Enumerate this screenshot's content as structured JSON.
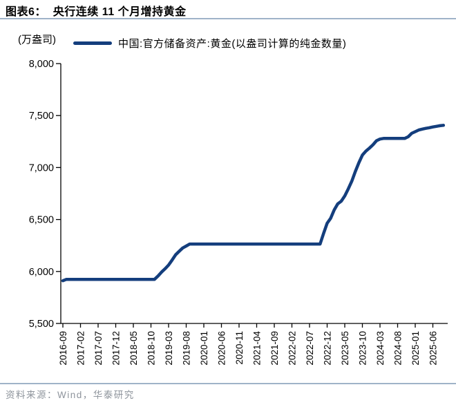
{
  "header": {
    "title": "图表6：  央行连续 11 个月增持黄金"
  },
  "chart": {
    "unit_label": "(万盎司)",
    "legend": {
      "label": "中国:官方储备资产:黄金(以盎司计算的纯金数量)"
    }
  },
  "footer": {
    "source": "资料来源：Wind，华泰研究"
  },
  "colors": {
    "line": "#143e7d",
    "axis": "#000000",
    "divider": "#9fb3c8",
    "source_text": "#8e949c"
  },
  "chart_data": {
    "type": "line",
    "title": "央行连续 11 个月增持黄金",
    "unit": "万盎司",
    "grid": false,
    "legend_position": "top",
    "ylim": [
      5500,
      8000
    ],
    "y_tick_values": [
      5500,
      6000,
      6500,
      7000,
      7500,
      8000
    ],
    "y_tick_labels": [
      "5,500",
      "6,000",
      "6,500",
      "7,000",
      "7,500",
      "8,000"
    ],
    "x_tick_labels": [
      "2016-09",
      "2017-02",
      "2017-07",
      "2017-12",
      "2018-05",
      "2018-10",
      "2019-03",
      "2019-08",
      "2020-01",
      "2020-06",
      "2020-11",
      "2021-04",
      "2021-09",
      "2022-02",
      "2022-07",
      "2022-12",
      "2023-05",
      "2023-10",
      "2024-03",
      "2024-08",
      "2025-01",
      "2025-06"
    ],
    "x_tick_every_n_months": 5,
    "series": [
      {
        "name": "中国:官方储备资产:黄金(以盎司计算的纯金数量)",
        "color": "#143e7d",
        "x_start": "2016-09",
        "x_freq": "monthly",
        "values": [
          5911,
          5924,
          5924,
          5924,
          5924,
          5924,
          5924,
          5924,
          5924,
          5924,
          5924,
          5924,
          5924,
          5924,
          5924,
          5924,
          5924,
          5924,
          5924,
          5924,
          5924,
          5924,
          5924,
          5924,
          5924,
          5924,
          5924,
          5956,
          5994,
          6026,
          6062,
          6110,
          6161,
          6194,
          6226,
          6245,
          6264,
          6264,
          6264,
          6264,
          6264,
          6264,
          6264,
          6264,
          6264,
          6264,
          6264,
          6264,
          6264,
          6264,
          6264,
          6264,
          6264,
          6264,
          6264,
          6264,
          6264,
          6264,
          6264,
          6264,
          6264,
          6264,
          6264,
          6264,
          6264,
          6264,
          6264,
          6264,
          6264,
          6264,
          6264,
          6264,
          6264,
          6264,
          6367,
          6464,
          6512,
          6592,
          6650,
          6676,
          6727,
          6795,
          6869,
          6962,
          7046,
          7120,
          7158,
          7187,
          7219,
          7258,
          7274,
          7280,
          7280,
          7280,
          7280,
          7280,
          7280,
          7280,
          7296,
          7329,
          7345,
          7361,
          7370,
          7377,
          7383,
          7390,
          7396,
          7402,
          7406
        ]
      }
    ]
  }
}
